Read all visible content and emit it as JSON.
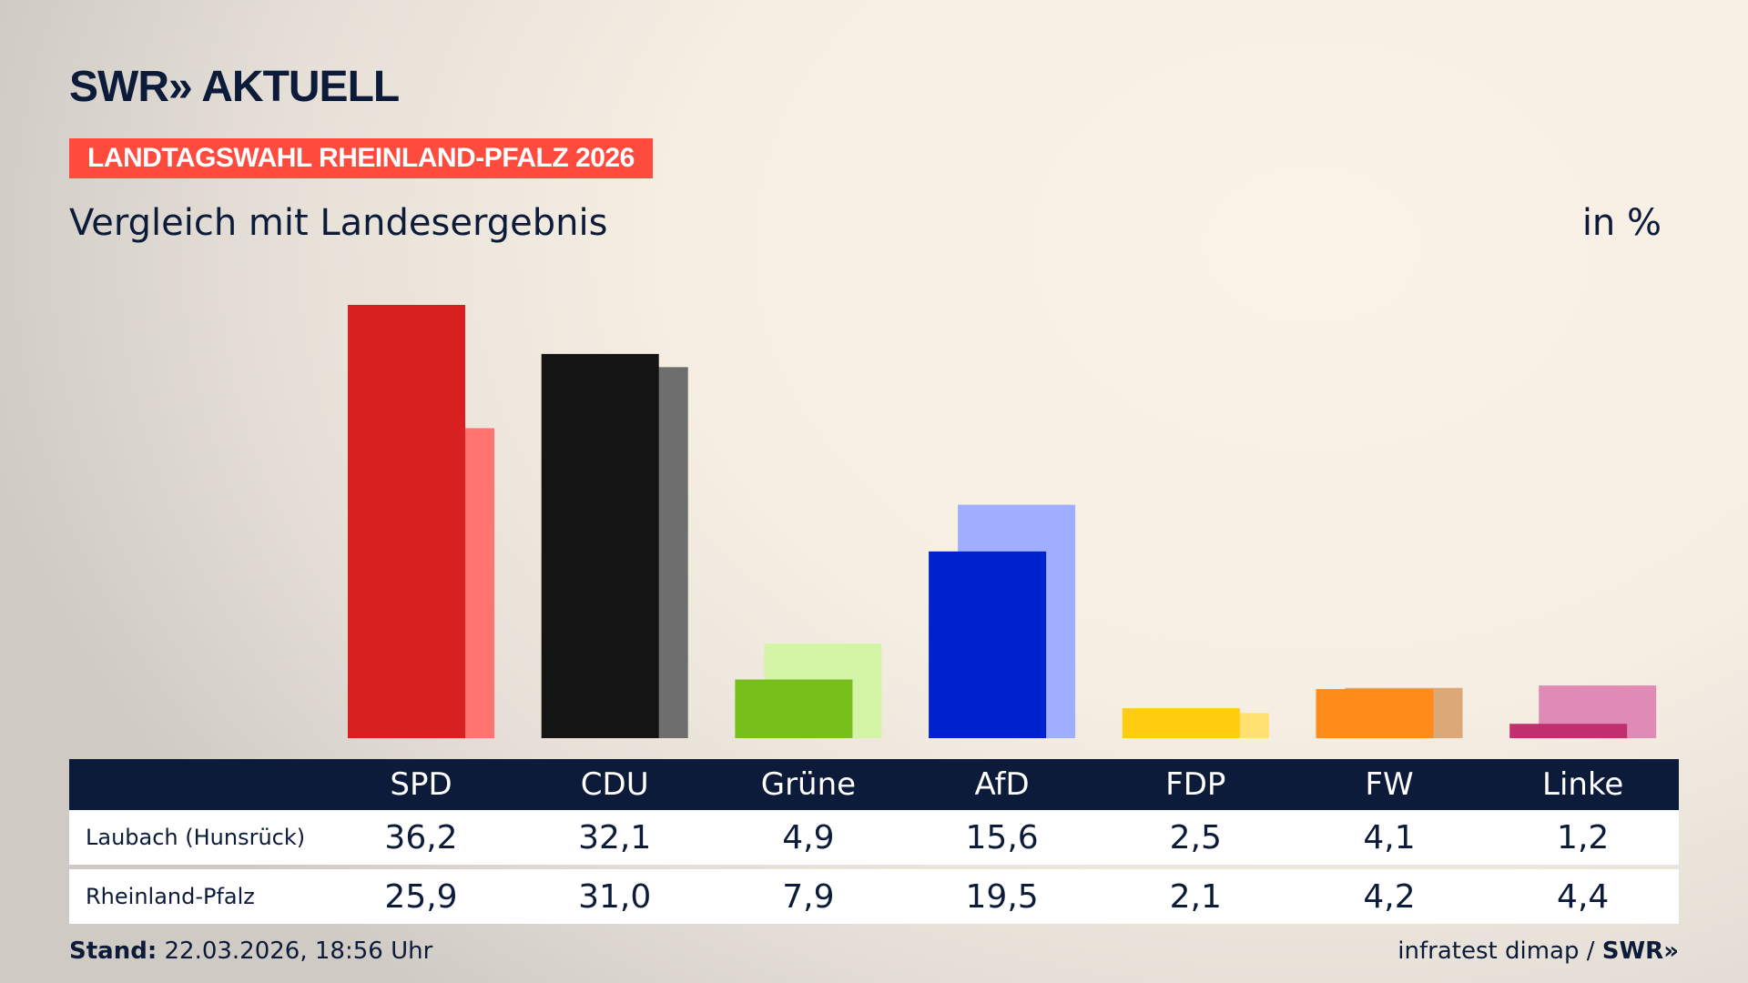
{
  "brand": {
    "logo": "SWR» AKTUELL",
    "footer_logo": "SWR»"
  },
  "banner": "LANDTAGSWAHL RHEINLAND-PFALZ 2026",
  "subtitle": "Vergleich mit Landesergebnis",
  "unit": "in %",
  "footer": {
    "stand_label": "Stand:",
    "stand_value": "22.03.2026, 18:56 Uhr",
    "source": "infratest dimap /"
  },
  "chart_data": {
    "type": "bar",
    "categories": [
      "SPD",
      "CDU",
      "Grüne",
      "AfD",
      "FDP",
      "FW",
      "Linke"
    ],
    "series": [
      {
        "name": "Laubach (Hunsrück)",
        "values": [
          36.2,
          32.1,
          4.9,
          15.6,
          2.5,
          4.1,
          1.2
        ],
        "colors": [
          "#d92020",
          "#141414",
          "#78bf1c",
          "#0022cc",
          "#ffcc10",
          "#ff8c1a",
          "#c0306e"
        ]
      },
      {
        "name": "Rheinland-Pfalz",
        "values": [
          25.9,
          31.0,
          7.9,
          19.5,
          2.1,
          4.2,
          4.4
        ],
        "colors": [
          "#ff7470",
          "#6e6e6e",
          "#d4f5a6",
          "#a0aeff",
          "#ffe070",
          "#dca878",
          "#e08ab6"
        ]
      }
    ],
    "value_labels": {
      "row1": [
        "36,2",
        "32,1",
        "4,9",
        "15,6",
        "2,5",
        "4,1",
        "1,2"
      ],
      "row2": [
        "25,9",
        "31,0",
        "7,9",
        "19,5",
        "2,1",
        "4,2",
        "4,4"
      ]
    },
    "ylim": [
      0,
      40
    ]
  }
}
